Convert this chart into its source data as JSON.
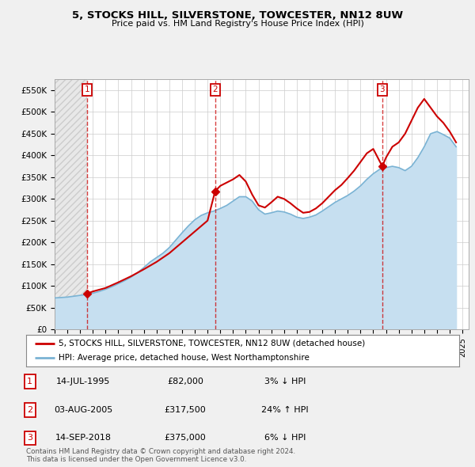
{
  "title_line1": "5, STOCKS HILL, SILVERSTONE, TOWCESTER, NN12 8UW",
  "title_line2": "Price paid vs. HM Land Registry's House Price Index (HPI)",
  "background_color": "#f0f0f0",
  "plot_bg_color": "#ffffff",
  "hpi_fill_color": "#c6dff0",
  "hpi_line_color": "#7ab3d4",
  "price_color": "#cc0000",
  "transactions": [
    {
      "date_num": 1995.54,
      "price": 82000,
      "label": "1",
      "pct": "3%",
      "dir": "↓",
      "date_str": "14-JUL-1995"
    },
    {
      "date_num": 2005.59,
      "price": 317500,
      "label": "2",
      "pct": "24%",
      "dir": "↑",
      "date_str": "03-AUG-2005"
    },
    {
      "date_num": 2018.71,
      "price": 375000,
      "label": "3",
      "pct": "6%",
      "dir": "↓",
      "date_str": "14-SEP-2018"
    }
  ],
  "hpi_data_x": [
    1993,
    1993.5,
    1994,
    1994.5,
    1995,
    1995.5,
    1996,
    1996.5,
    1997,
    1997.5,
    1998,
    1998.5,
    1999,
    1999.5,
    2000,
    2000.5,
    2001,
    2001.5,
    2002,
    2002.5,
    2003,
    2003.5,
    2004,
    2004.5,
    2005,
    2005.5,
    2006,
    2006.5,
    2007,
    2007.5,
    2008,
    2008.5,
    2009,
    2009.5,
    2010,
    2010.5,
    2011,
    2011.5,
    2012,
    2012.5,
    2013,
    2013.5,
    2014,
    2014.5,
    2015,
    2015.5,
    2016,
    2016.5,
    2017,
    2017.5,
    2018,
    2018.5,
    2019,
    2019.5,
    2020,
    2020.5,
    2021,
    2021.5,
    2022,
    2022.5,
    2023,
    2023.5,
    2024,
    2024.5
  ],
  "hpi_data_y": [
    72000,
    73000,
    74000,
    76000,
    78000,
    80000,
    83000,
    87000,
    92000,
    98000,
    105000,
    112000,
    120000,
    130000,
    142000,
    155000,
    165000,
    175000,
    188000,
    205000,
    222000,
    238000,
    252000,
    262000,
    268000,
    272000,
    278000,
    285000,
    295000,
    305000,
    305000,
    295000,
    275000,
    265000,
    268000,
    272000,
    270000,
    265000,
    258000,
    255000,
    258000,
    263000,
    272000,
    282000,
    292000,
    300000,
    308000,
    318000,
    330000,
    345000,
    358000,
    368000,
    372000,
    375000,
    372000,
    365000,
    375000,
    395000,
    420000,
    450000,
    455000,
    448000,
    440000,
    420000
  ],
  "price_line_x": [
    1995.54,
    1996,
    1997,
    1998,
    1999,
    2000,
    2001,
    2002,
    2003,
    2004,
    2005,
    2005.59,
    2006,
    2007,
    2007.5,
    2008,
    2008.5,
    2009,
    2009.5,
    2010,
    2010.5,
    2011,
    2011.5,
    2012,
    2012.5,
    2013,
    2013.5,
    2014,
    2014.5,
    2015,
    2015.5,
    2016,
    2016.5,
    2017,
    2017.5,
    2018,
    2018.71,
    2019,
    2019.5,
    2020,
    2020.5,
    2021,
    2021.5,
    2022,
    2022.5,
    2023,
    2023.5,
    2024,
    2024.5
  ],
  "price_line_y": [
    82000,
    87000,
    95000,
    108000,
    122000,
    138000,
    155000,
    175000,
    200000,
    225000,
    250000,
    317500,
    330000,
    345000,
    355000,
    340000,
    310000,
    285000,
    280000,
    292000,
    305000,
    300000,
    290000,
    278000,
    268000,
    270000,
    278000,
    290000,
    305000,
    320000,
    332000,
    348000,
    365000,
    385000,
    405000,
    415000,
    375000,
    395000,
    420000,
    430000,
    450000,
    480000,
    510000,
    530000,
    510000,
    490000,
    475000,
    455000,
    430000
  ],
  "xlim": [
    1993,
    2025.5
  ],
  "ylim": [
    0,
    575000
  ],
  "yticks": [
    0,
    50000,
    100000,
    150000,
    200000,
    250000,
    300000,
    350000,
    400000,
    450000,
    500000,
    550000
  ],
  "ytick_labels": [
    "£0",
    "£50K",
    "£100K",
    "£150K",
    "£200K",
    "£250K",
    "£300K",
    "£350K",
    "£400K",
    "£450K",
    "£500K",
    "£550K"
  ],
  "xticks": [
    1993,
    1994,
    1995,
    1996,
    1997,
    1998,
    1999,
    2000,
    2001,
    2002,
    2003,
    2004,
    2005,
    2006,
    2007,
    2008,
    2009,
    2010,
    2011,
    2012,
    2013,
    2014,
    2015,
    2016,
    2017,
    2018,
    2019,
    2020,
    2021,
    2022,
    2023,
    2024,
    2025
  ],
  "legend_price_label": "5, STOCKS HILL, SILVERSTONE, TOWCESTER, NN12 8UW (detached house)",
  "legend_hpi_label": "HPI: Average price, detached house, West Northamptonshire",
  "footer": "Contains HM Land Registry data © Crown copyright and database right 2024.\nThis data is licensed under the Open Government Licence v3.0.",
  "table_rows": [
    [
      "1",
      "14-JUL-1995",
      "£82,000",
      "3% ↓ HPI"
    ],
    [
      "2",
      "03-AUG-2005",
      "£317,500",
      "24% ↑ HPI"
    ],
    [
      "3",
      "14-SEP-2018",
      "£375,000",
      "6% ↓ HPI"
    ]
  ]
}
